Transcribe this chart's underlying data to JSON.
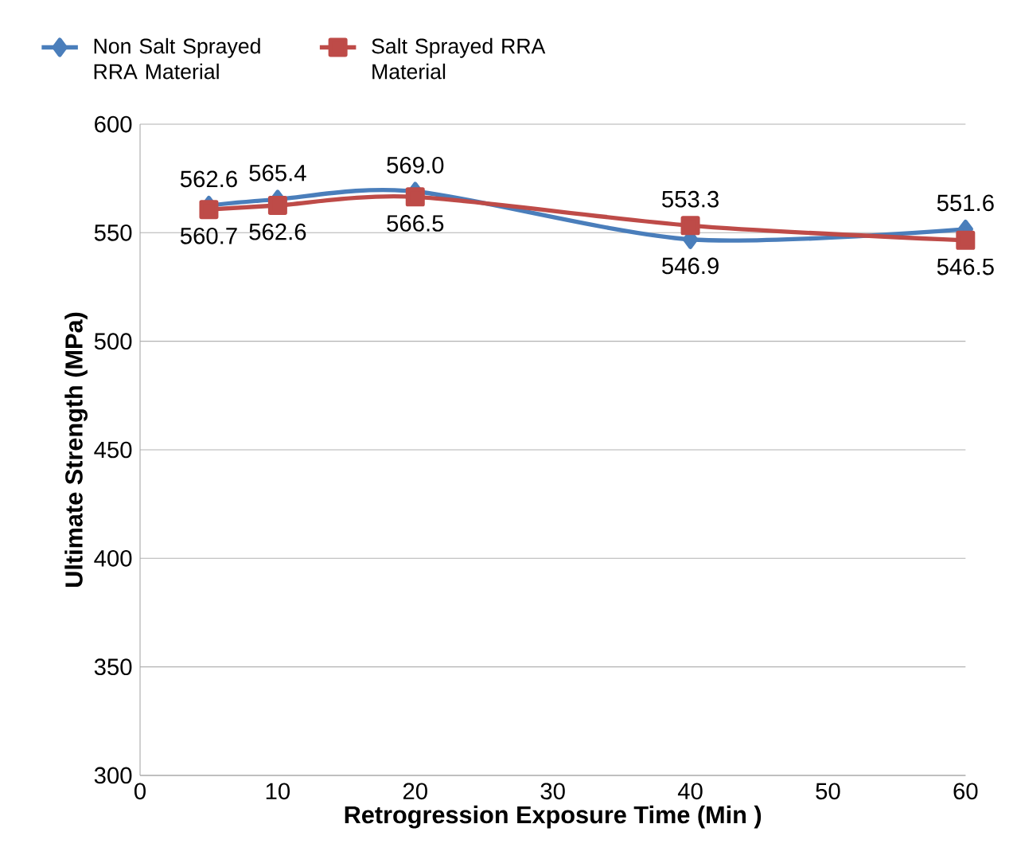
{
  "chart_data": {
    "type": "line",
    "xlabel": "Retrogression Exposure Time (Min )",
    "ylabel": "Ultimate Strength (MPa)",
    "x": [
      5,
      10,
      20,
      40,
      60
    ],
    "series": [
      {
        "name": "Non Salt  Sprayed RRA Material",
        "color": "#4a7ebb",
        "marker": "diamond",
        "values": [
          562.6,
          565.4,
          569.0,
          546.9,
          551.6
        ],
        "value_labels": [
          "562.6",
          "565.4",
          "569.0",
          "546.9",
          "551.6"
        ]
      },
      {
        "name": "Salt Sprayed RRA Material",
        "color": "#be4b48",
        "marker": "square",
        "values": [
          560.7,
          562.6,
          566.5,
          553.3,
          546.5
        ],
        "value_labels": [
          "560.7",
          "562.6",
          "566.5",
          "553.3",
          "546.5"
        ]
      }
    ],
    "xlim": [
      0,
      60
    ],
    "xticks": [
      0,
      10,
      20,
      30,
      40,
      50,
      60
    ],
    "ylim": [
      300,
      600
    ],
    "yticks": [
      300,
      350,
      400,
      450,
      500,
      550,
      600
    ],
    "grid": "y",
    "legend": "top",
    "line_style": "solid"
  }
}
